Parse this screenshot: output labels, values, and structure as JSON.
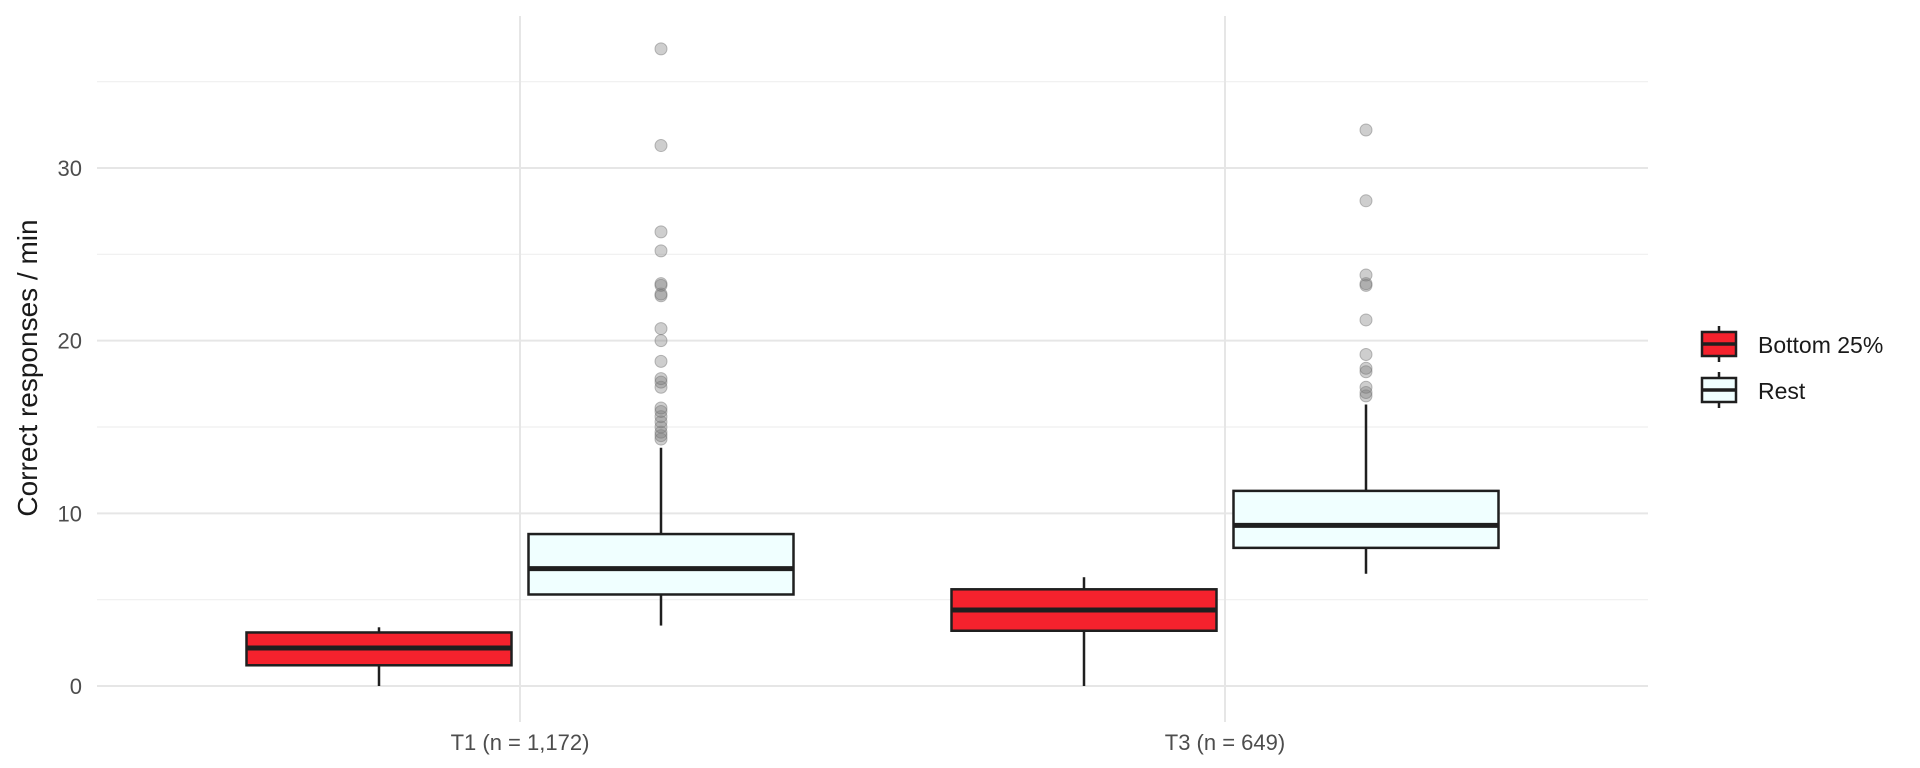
{
  "chart_data": {
    "type": "box",
    "title": "",
    "xlabel": "",
    "ylabel": "Correct responses / min",
    "ylim": [
      -1,
      37.5
    ],
    "yticks": [
      0,
      10,
      20,
      30
    ],
    "grid": true,
    "legend_position": "right",
    "categories": [
      "T1 (n = 1,172)",
      "T3 (n = 649)"
    ],
    "series": [
      {
        "name": "Bottom 25%",
        "color": "#f5222d",
        "boxes": [
          {
            "category": "T1 (n = 1,172)",
            "whisker_low": 0.0,
            "q1": 1.2,
            "median": 2.2,
            "q3": 3.1,
            "whisker_high": 3.4,
            "outliers": []
          },
          {
            "category": "T3 (n = 649)",
            "whisker_low": 0.0,
            "q1": 3.2,
            "median": 4.4,
            "q3": 5.6,
            "whisker_high": 6.3,
            "outliers": []
          }
        ]
      },
      {
        "name": "Rest",
        "color": "#f0ffff",
        "boxes": [
          {
            "category": "T1 (n = 1,172)",
            "whisker_low": 3.5,
            "q1": 5.3,
            "median": 6.8,
            "q3": 8.8,
            "whisker_high": 13.8,
            "outliers": [
              14.3,
              14.5,
              14.7,
              15.0,
              15.3,
              15.6,
              15.9,
              16.1,
              17.3,
              17.6,
              17.8,
              18.8,
              20.0,
              20.7,
              22.6,
              22.7,
              23.2,
              23.3,
              25.2,
              26.3,
              31.3,
              36.9
            ]
          },
          {
            "category": "T3 (n = 649)",
            "whisker_low": 6.5,
            "q1": 8.0,
            "median": 9.3,
            "q3": 11.3,
            "whisker_high": 16.3,
            "outliers": [
              16.8,
              17.0,
              17.3,
              18.2,
              18.4,
              19.2,
              21.2,
              23.2,
              23.3,
              23.8,
              28.1,
              32.2
            ]
          }
        ]
      }
    ]
  }
}
